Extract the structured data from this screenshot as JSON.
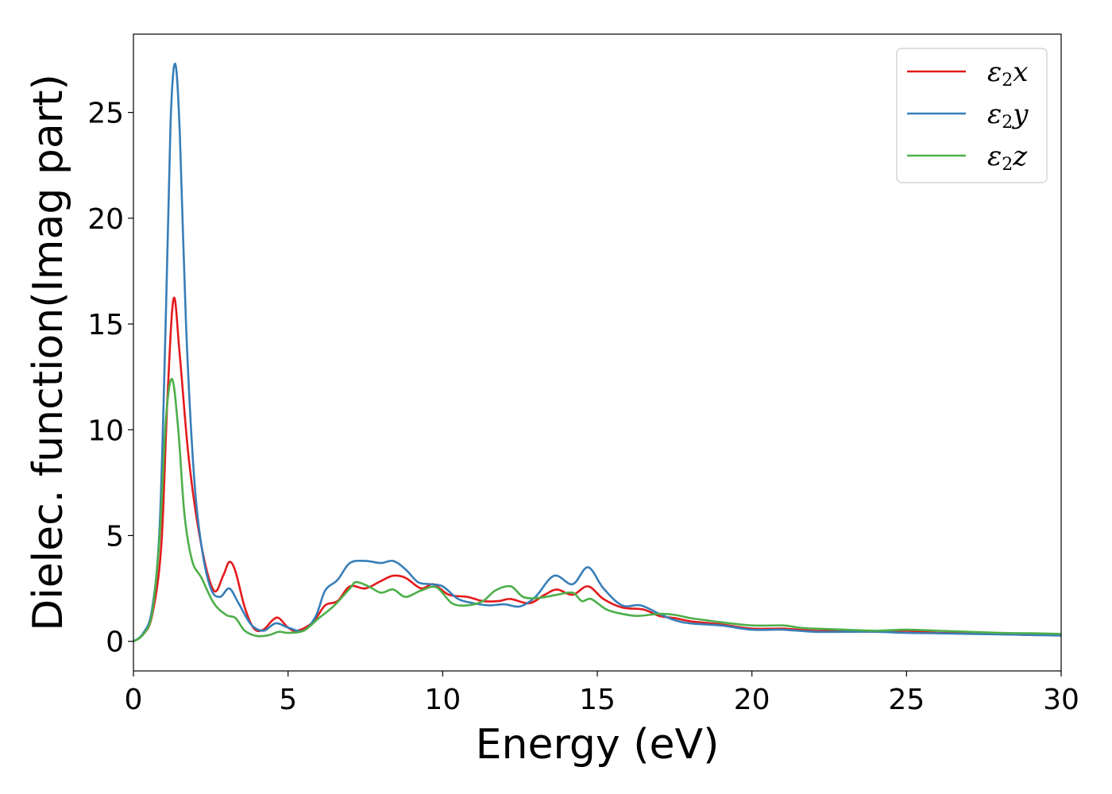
{
  "chart_data": {
    "type": "line",
    "title": "",
    "xlabel": "Energy (eV)",
    "ylabel": "Dielec. function(Imag part)",
    "xlim": [
      0,
      30
    ],
    "ylim": [
      -1.4,
      28.7
    ],
    "xticks": [
      0,
      5,
      10,
      15,
      20,
      25,
      30
    ],
    "yticks": [
      0,
      5,
      10,
      15,
      20,
      25
    ],
    "grid": false,
    "legend_position": "top-right",
    "series": [
      {
        "name": "x",
        "legend_symbol": "ε",
        "legend_subscript": "2",
        "legend_suffix": "x",
        "color": "#e41a1c",
        "points": [
          [
            0,
            0
          ],
          [
            0.3,
            0.3
          ],
          [
            0.6,
            1.2
          ],
          [
            0.9,
            4.5
          ],
          [
            1.1,
            11.5
          ],
          [
            1.3,
            16.2
          ],
          [
            1.5,
            13.5
          ],
          [
            1.8,
            8.5
          ],
          [
            2.2,
            4.5
          ],
          [
            2.6,
            2.4
          ],
          [
            2.9,
            3.1
          ],
          [
            3.1,
            3.75
          ],
          [
            3.3,
            3.3
          ],
          [
            3.6,
            1.6
          ],
          [
            3.9,
            0.6
          ],
          [
            4.2,
            0.55
          ],
          [
            4.5,
            1.0
          ],
          [
            4.7,
            1.1
          ],
          [
            5.0,
            0.65
          ],
          [
            5.3,
            0.5
          ],
          [
            5.8,
            0.9
          ],
          [
            6.2,
            1.7
          ],
          [
            6.6,
            1.9
          ],
          [
            7.0,
            2.6
          ],
          [
            7.5,
            2.5
          ],
          [
            8.0,
            2.85
          ],
          [
            8.4,
            3.1
          ],
          [
            8.8,
            3.0
          ],
          [
            9.3,
            2.5
          ],
          [
            9.7,
            2.7
          ],
          [
            10.2,
            2.2
          ],
          [
            10.8,
            2.1
          ],
          [
            11.3,
            1.9
          ],
          [
            11.8,
            1.9
          ],
          [
            12.2,
            2.0
          ],
          [
            12.8,
            1.8
          ],
          [
            13.3,
            2.2
          ],
          [
            13.7,
            2.45
          ],
          [
            14.2,
            2.2
          ],
          [
            14.7,
            2.6
          ],
          [
            15.2,
            2.0
          ],
          [
            15.8,
            1.6
          ],
          [
            16.5,
            1.5
          ],
          [
            17.0,
            1.2
          ],
          [
            17.5,
            1.1
          ],
          [
            18.0,
            0.95
          ],
          [
            19.0,
            0.8
          ],
          [
            20.0,
            0.6
          ],
          [
            21.0,
            0.6
          ],
          [
            22.0,
            0.5
          ],
          [
            23.0,
            0.5
          ],
          [
            24.0,
            0.45
          ],
          [
            25.0,
            0.5
          ],
          [
            26.0,
            0.4
          ],
          [
            27.0,
            0.4
          ],
          [
            28.0,
            0.35
          ],
          [
            29.0,
            0.3
          ],
          [
            30.0,
            0.3
          ]
        ]
      },
      {
        "name": "y",
        "legend_symbol": "ε",
        "legend_subscript": "2",
        "legend_suffix": "y",
        "color": "#377eb8",
        "points": [
          [
            0,
            0
          ],
          [
            0.3,
            0.35
          ],
          [
            0.6,
            1.5
          ],
          [
            0.85,
            5.5
          ],
          [
            1.05,
            15.5
          ],
          [
            1.2,
            24.5
          ],
          [
            1.35,
            27.3
          ],
          [
            1.5,
            24.0
          ],
          [
            1.7,
            15.0
          ],
          [
            1.95,
            8.0
          ],
          [
            2.2,
            4.5
          ],
          [
            2.5,
            2.5
          ],
          [
            2.8,
            2.1
          ],
          [
            3.1,
            2.5
          ],
          [
            3.4,
            1.8
          ],
          [
            3.8,
            0.8
          ],
          [
            4.2,
            0.5
          ],
          [
            4.6,
            0.85
          ],
          [
            5.0,
            0.65
          ],
          [
            5.5,
            0.5
          ],
          [
            5.9,
            1.2
          ],
          [
            6.2,
            2.4
          ],
          [
            6.6,
            2.9
          ],
          [
            7.0,
            3.7
          ],
          [
            7.5,
            3.8
          ],
          [
            8.0,
            3.7
          ],
          [
            8.4,
            3.8
          ],
          [
            8.8,
            3.4
          ],
          [
            9.2,
            2.8
          ],
          [
            9.6,
            2.7
          ],
          [
            10.0,
            2.6
          ],
          [
            10.5,
            2.0
          ],
          [
            11.0,
            1.8
          ],
          [
            11.5,
            1.7
          ],
          [
            12.0,
            1.75
          ],
          [
            12.5,
            1.65
          ],
          [
            13.0,
            2.1
          ],
          [
            13.6,
            3.1
          ],
          [
            14.2,
            2.7
          ],
          [
            14.7,
            3.5
          ],
          [
            15.2,
            2.5
          ],
          [
            15.8,
            1.7
          ],
          [
            16.4,
            1.7
          ],
          [
            17.0,
            1.3
          ],
          [
            17.5,
            1.0
          ],
          [
            18.0,
            0.85
          ],
          [
            19.0,
            0.75
          ],
          [
            20.0,
            0.55
          ],
          [
            21.0,
            0.55
          ],
          [
            22.0,
            0.45
          ],
          [
            23.0,
            0.45
          ],
          [
            24.0,
            0.45
          ],
          [
            25.0,
            0.4
          ],
          [
            26.0,
            0.38
          ],
          [
            27.0,
            0.35
          ],
          [
            28.0,
            0.33
          ],
          [
            29.0,
            0.3
          ],
          [
            30.0,
            0.27
          ]
        ]
      },
      {
        "name": "z",
        "legend_symbol": "ε",
        "legend_subscript": "2",
        "legend_suffix": "z",
        "color": "#4daf4a",
        "points": [
          [
            0,
            0
          ],
          [
            0.3,
            0.3
          ],
          [
            0.6,
            1.3
          ],
          [
            0.85,
            5.0
          ],
          [
            1.05,
            10.5
          ],
          [
            1.25,
            12.4
          ],
          [
            1.45,
            10.0
          ],
          [
            1.65,
            6.0
          ],
          [
            1.9,
            3.8
          ],
          [
            2.2,
            3.0
          ],
          [
            2.6,
            1.8
          ],
          [
            3.0,
            1.25
          ],
          [
            3.3,
            1.1
          ],
          [
            3.6,
            0.5
          ],
          [
            4.0,
            0.25
          ],
          [
            4.4,
            0.3
          ],
          [
            4.7,
            0.45
          ],
          [
            5.0,
            0.4
          ],
          [
            5.5,
            0.5
          ],
          [
            6.0,
            1.1
          ],
          [
            6.5,
            1.7
          ],
          [
            7.0,
            2.5
          ],
          [
            7.2,
            2.8
          ],
          [
            7.6,
            2.6
          ],
          [
            8.0,
            2.3
          ],
          [
            8.4,
            2.45
          ],
          [
            8.8,
            2.1
          ],
          [
            9.3,
            2.4
          ],
          [
            9.8,
            2.55
          ],
          [
            10.3,
            1.8
          ],
          [
            10.8,
            1.7
          ],
          [
            11.3,
            1.9
          ],
          [
            11.7,
            2.4
          ],
          [
            12.2,
            2.6
          ],
          [
            12.6,
            2.1
          ],
          [
            13.1,
            2.05
          ],
          [
            13.7,
            2.2
          ],
          [
            14.2,
            2.3
          ],
          [
            14.5,
            1.9
          ],
          [
            14.8,
            2.0
          ],
          [
            15.3,
            1.5
          ],
          [
            15.8,
            1.3
          ],
          [
            16.3,
            1.2
          ],
          [
            17.0,
            1.3
          ],
          [
            17.5,
            1.25
          ],
          [
            18.0,
            1.1
          ],
          [
            18.5,
            1.0
          ],
          [
            19.0,
            0.9
          ],
          [
            20.0,
            0.75
          ],
          [
            21.0,
            0.75
          ],
          [
            21.5,
            0.65
          ],
          [
            22.0,
            0.6
          ],
          [
            23.0,
            0.55
          ],
          [
            24.0,
            0.5
          ],
          [
            25.0,
            0.55
          ],
          [
            26.0,
            0.5
          ],
          [
            27.0,
            0.45
          ],
          [
            28.0,
            0.4
          ],
          [
            29.0,
            0.38
          ],
          [
            30.0,
            0.35
          ]
        ]
      }
    ]
  }
}
